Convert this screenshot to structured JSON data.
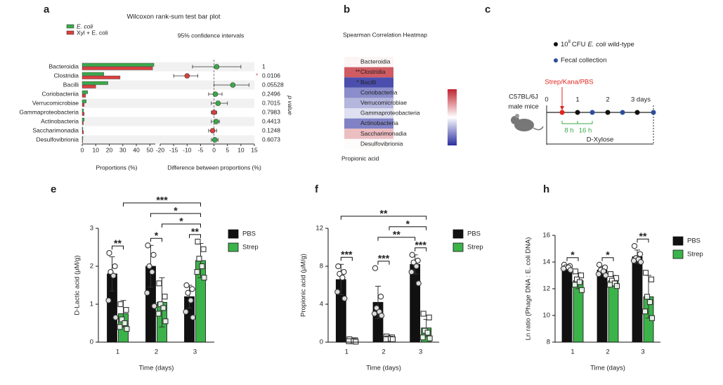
{
  "chart_data": [
    {
      "type": "hbar",
      "panel": "a",
      "title": "Wilcoxon rank-sum test bar plot",
      "categories": [
        "Bacteroidia",
        "Clostridia",
        "Bacilli",
        "Coriobacteriia",
        "Verrucomicrobiae",
        "Gammaproteobacteria",
        "Actinobacteria",
        "Saccharimonadia",
        "Desulfovibrionia"
      ],
      "series": [
        {
          "name": "E. coli",
          "color": "#3aa94a",
          "values": [
            53,
            16,
            19,
            4,
            3,
            1,
            1.5,
            0.5,
            0.5
          ]
        },
        {
          "name": "Xyl + E. coli",
          "color": "#d9403f",
          "values": [
            52,
            28,
            10,
            2.5,
            1.5,
            1.5,
            0.8,
            1,
            0.3
          ]
        }
      ],
      "xlabel": "Proportions (%)",
      "xlim": [
        0,
        54
      ],
      "xticks": [
        0,
        10,
        20,
        30,
        40,
        50
      ]
    },
    {
      "type": "interval",
      "subtitle": "95% confidence intervals",
      "values": [
        1,
        -10,
        7,
        0.5,
        1.5,
        0,
        0.8,
        -0.5,
        0.3
      ],
      "ci": [
        [
          -8,
          10
        ],
        [
          -15,
          -6
        ],
        [
          0,
          13
        ],
        [
          -2,
          3
        ],
        [
          -1,
          5
        ],
        [
          -1,
          1
        ],
        [
          -1,
          2
        ],
        [
          -2,
          1
        ],
        [
          -1,
          1.5
        ]
      ],
      "colors": [
        "#3aa94a",
        "#d9403f",
        "#3aa94a",
        "#3aa94a",
        "#3aa94a",
        "#d9403f",
        "#3aa94a",
        "#d9403f",
        "#3aa94a"
      ],
      "p_values": [
        1,
        0.0106,
        0.05528,
        0.2496,
        0.7015,
        0.7983,
        0.4413,
        0.1248,
        0.6073
      ],
      "p_stars": [
        null,
        "*",
        null,
        null,
        null,
        null,
        null,
        null,
        null
      ],
      "ylabel": "p value",
      "xlabel": "Difference between proportions (%)",
      "xlim": [
        -20,
        15
      ],
      "xticks": [
        -20,
        -15,
        -10,
        -5,
        0,
        5,
        10,
        15
      ]
    },
    {
      "type": "heatmap",
      "panel": "b",
      "title": "Spearman Correlation Heatmap",
      "rows": [
        "Bacteroidia",
        "Clostridia",
        "Bacilli",
        "Coriobacteriia",
        "Verrucomicrobiae",
        "Gammaproteobacteria",
        "Actinobacteria",
        "Saccharimonadia",
        "Desulfovibrionia"
      ],
      "values": [
        0.05,
        0.75,
        -0.85,
        -0.55,
        -0.35,
        -0.15,
        -0.6,
        0.3,
        0.02
      ],
      "stars": [
        null,
        "**",
        "*",
        null,
        null,
        null,
        null,
        null,
        null
      ],
      "xlabel": "Propionic acid",
      "zlim": [
        -1,
        1
      ],
      "colors": [
        "#2b2f9e",
        "#ffffff",
        "#c0242f"
      ]
    },
    {
      "type": "groupbar",
      "panel": "e",
      "categories": [
        "1",
        "2",
        "3"
      ],
      "series": [
        {
          "name": "PBS",
          "color": "#111111",
          "marker": "circle",
          "values": [
            1.8,
            2.0,
            1.2
          ],
          "errors": [
            0.45,
            0.55,
            0.3
          ],
          "points": [
            [
              2.35,
              2.0,
              1.85,
              1.75,
              1.1,
              0.65
            ],
            [
              2.55,
              2.3,
              2.0,
              1.85,
              1.3,
              0.95
            ],
            [
              1.5,
              1.4,
              1.3,
              1.1,
              0.8,
              0.65
            ]
          ]
        },
        {
          "name": "Strep",
          "color": "#3cb34a",
          "marker": "square",
          "values": [
            0.75,
            1.05,
            2.15
          ],
          "errors": [
            0.35,
            0.65,
            0.45
          ],
          "points": [
            [
              1.0,
              0.85,
              0.6,
              0.5,
              0.4,
              0.35
            ],
            [
              1.55,
              1.2,
              1.0,
              0.9,
              0.75,
              0.55
            ],
            [
              2.65,
              2.45,
              2.2,
              2.0,
              1.85,
              1.7
            ]
          ]
        }
      ],
      "xlabel": "Time (days)",
      "ylabel": "D-Lactic acid (μM/g)",
      "ylim": [
        0,
        3
      ],
      "yticks": [
        0,
        1,
        2,
        3
      ],
      "brackets": [
        {
          "from": 0,
          "to": 1,
          "label": "**"
        },
        {
          "from": 2,
          "to": 3,
          "label": "*"
        },
        {
          "from": 4,
          "to": 5,
          "label": "**"
        },
        {
          "from": 3,
          "to": 5,
          "label": "*"
        },
        {
          "from": 2,
          "to": 5,
          "label": "*"
        },
        {
          "from": 1,
          "to": 5,
          "label": "***"
        }
      ]
    },
    {
      "type": "groupbar",
      "panel": "f",
      "categories": [
        "1",
        "2",
        "3"
      ],
      "series": [
        {
          "name": "PBS",
          "color": "#111111",
          "marker": "circle",
          "values": [
            6.6,
            4.2,
            8.2
          ],
          "errors": [
            1.6,
            1.7,
            1.0
          ],
          "points": [
            [
              8,
              7.4,
              7.2,
              6.8,
              5.3,
              4.6
            ],
            [
              7.8,
              4.8,
              3.6,
              3.2,
              3.0,
              2.8
            ],
            [
              9.2,
              8.6,
              8.4,
              8.0,
              7.4,
              6.2
            ]
          ]
        },
        {
          "name": "Strep",
          "color": "#3cb34a",
          "marker": "square",
          "values": [
            0.15,
            0.4,
            1.5
          ],
          "errors": [
            0.2,
            0.2,
            0.9
          ],
          "points": [
            [
              0.3,
              0.2,
              0.1,
              0.1,
              0.1,
              0.05
            ],
            [
              0.6,
              0.5,
              0.4,
              0.35,
              0.3,
              0.3
            ],
            [
              3.0,
              2.6,
              1.2,
              1.0,
              0.5,
              0.4
            ]
          ]
        }
      ],
      "xlabel": "Time (days)",
      "ylabel": "Propionic acid (μM/g)",
      "ylim": [
        0,
        12
      ],
      "yticks": [
        0,
        4,
        8,
        12
      ],
      "brackets": [
        {
          "from": 0,
          "to": 1,
          "label": "***"
        },
        {
          "from": 2,
          "to": 3,
          "label": "***"
        },
        {
          "from": 4,
          "to": 5,
          "label": "***"
        },
        {
          "from": 2,
          "to": 4,
          "label": "**"
        },
        {
          "from": 3,
          "to": 5,
          "label": "*"
        },
        {
          "from": 0,
          "to": 5,
          "label": "**"
        }
      ]
    },
    {
      "type": "groupbar",
      "panel": "h",
      "categories": [
        "1",
        "2",
        "3"
      ],
      "series": [
        {
          "name": "PBS",
          "color": "#111111",
          "marker": "circle",
          "values": [
            13.6,
            13.4,
            14.4
          ],
          "errors": [
            0.2,
            0.3,
            0.5
          ],
          "points": [
            [
              13.8,
              13.7,
              13.6,
              13.6,
              13.5,
              13.4
            ],
            [
              13.8,
              13.6,
              13.4,
              13.3,
              13.1,
              13.0
            ],
            [
              15.2,
              14.6,
              14.3,
              14.2,
              14.1,
              14.0
            ]
          ]
        },
        {
          "name": "Strep",
          "color": "#3cb34a",
          "marker": "square",
          "values": [
            12.6,
            12.6,
            11.4
          ],
          "errors": [
            0.6,
            0.4,
            1.6
          ],
          "points": [
            [
              13.3,
              13.0,
              12.7,
              12.5,
              12.3,
              11.9
            ],
            [
              13.1,
              12.8,
              12.6,
              12.4,
              12.3,
              12.2
            ],
            [
              13.2,
              12.7,
              11.4,
              11.0,
              10.3,
              9.8
            ]
          ]
        }
      ],
      "xlabel": "Time (days)",
      "ylabel": "Ln ratio (Phage DNA : E. coli DNA)",
      "ylim": [
        8,
        16
      ],
      "yticks": [
        8,
        10,
        12,
        14,
        16
      ],
      "brackets": [
        {
          "from": 0,
          "to": 1,
          "label": "*"
        },
        {
          "from": 2,
          "to": 3,
          "label": "*"
        },
        {
          "from": 4,
          "to": 5,
          "label": "**"
        }
      ]
    }
  ],
  "diagram": {
    "panel": "c",
    "subject": [
      "C57BL/6J",
      "male mice"
    ],
    "inoculum": {
      "base": "10",
      "exp": "8",
      "unit": "CFU",
      "species": "E. coli",
      "strain": "wild-type"
    },
    "fecal": "Fecal collection",
    "treatment": "Strep/Kana/PBS",
    "timeline_labels": [
      "0",
      "1",
      "2",
      "3 days"
    ],
    "intervals": [
      "8 h",
      "16 h"
    ],
    "diet": "D-Xylose"
  }
}
